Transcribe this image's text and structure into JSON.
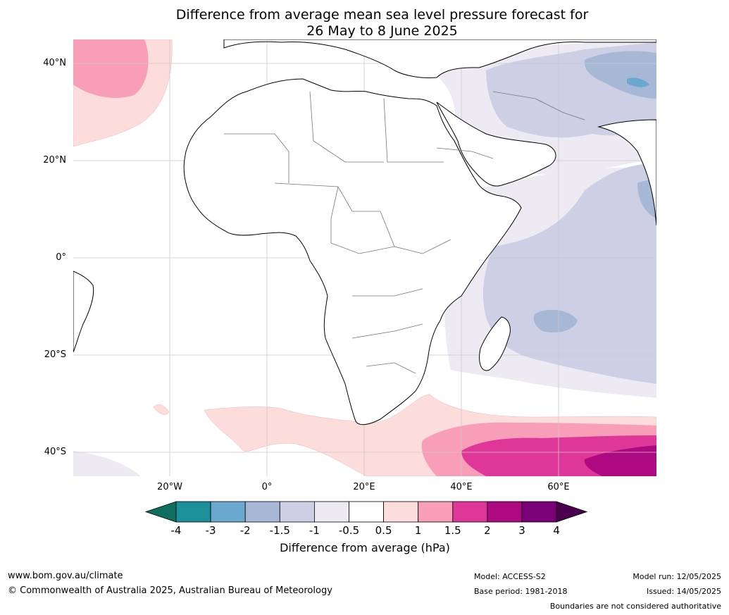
{
  "title_line1": "Difference from average mean sea level pressure forecast for",
  "title_line2": "26 May to 8 June 2025",
  "latitude_labels": [
    "40°N",
    "20°N",
    "0°",
    "20°S",
    "40°S"
  ],
  "longitude_labels": [
    "20°W",
    "0°",
    "20°E",
    "40°E",
    "60°E"
  ],
  "colorbar": {
    "ticks": [
      "-4",
      "-3",
      "-2",
      "-1.5",
      "-1",
      "-0.5",
      "0.5",
      "1",
      "1.5",
      "2",
      "3",
      "4"
    ],
    "colors": [
      "#0f6e5e",
      "#1b8f9a",
      "#6aa8d0",
      "#a6b8d6",
      "#cdd0e5",
      "#eeeaf3",
      "#ffffff",
      "#fddcdc",
      "#f89eb8",
      "#de3699",
      "#ad0980",
      "#7a0077",
      "#4b004f"
    ],
    "label": "Difference from average (hPa)"
  },
  "footer": {
    "website": "www.bom.gov.au/climate",
    "copyright": "© Commonwealth of Australia 2025, Australian Bureau of Meteorology",
    "model": "Model: ACCESS-S2",
    "base_period": "Base period: 1981-2018",
    "model_run": "Model run: 12/05/2025",
    "issued": "Issued: 14/05/2025",
    "disclaimer": "Boundaries are not considered authoritative"
  }
}
